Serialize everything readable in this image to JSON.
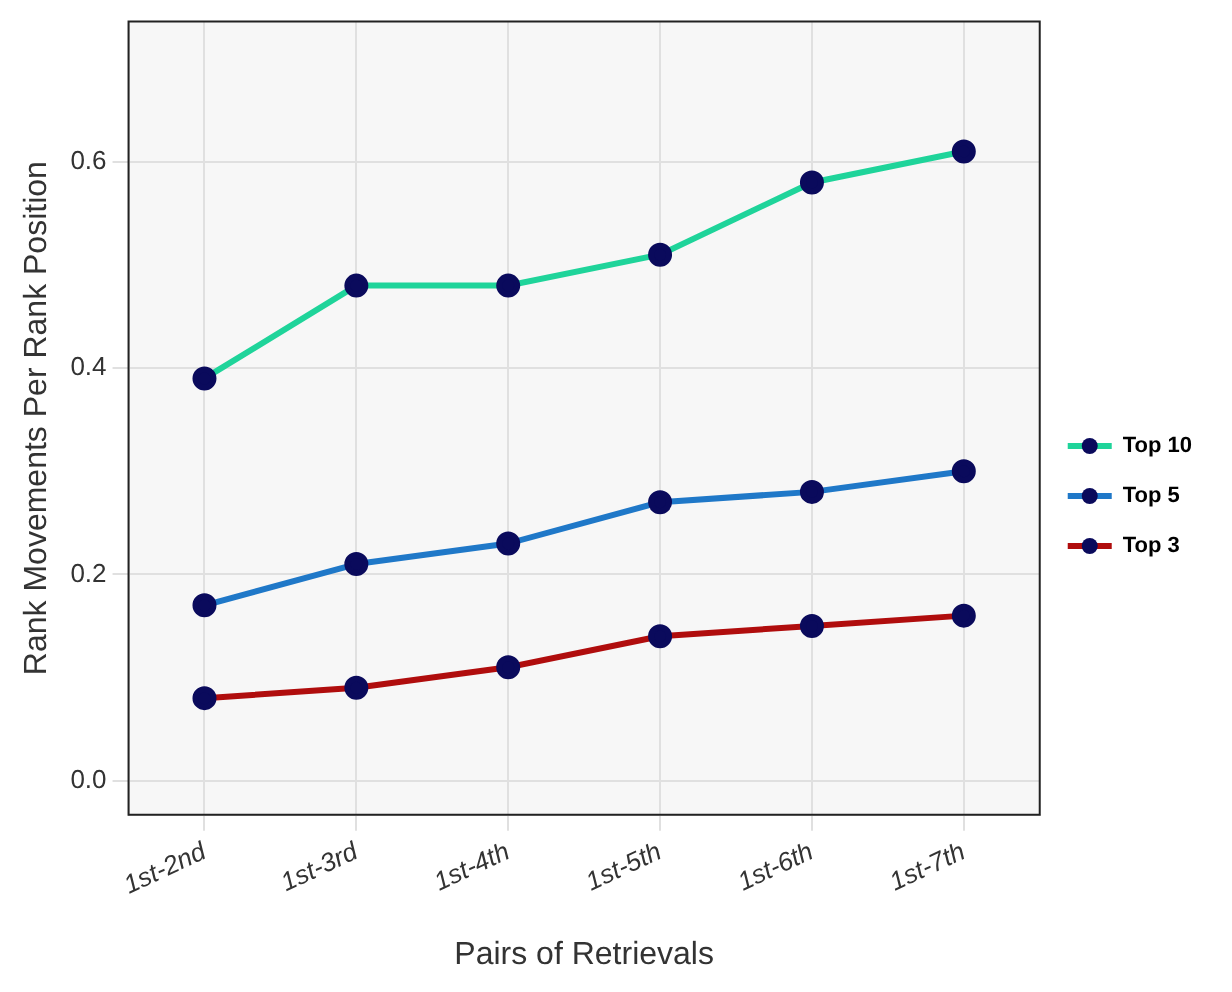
{
  "chart_data": {
    "type": "line",
    "xlabel": "Pairs of Retrievals",
    "ylabel": "Rank Movements Per Rank Position",
    "categories": [
      "1st-2nd",
      "1st-3rd",
      "1st-4th",
      "1st-5th",
      "1st-6th",
      "1st-7th"
    ],
    "series": [
      {
        "name": "Top 10",
        "color": "#1fd49a",
        "values": [
          0.39,
          0.48,
          0.48,
          0.51,
          0.58,
          0.61
        ]
      },
      {
        "name": "Top 5",
        "color": "#1f78c8",
        "values": [
          0.17,
          0.21,
          0.23,
          0.27,
          0.28,
          0.3
        ]
      },
      {
        "name": "Top 3",
        "color": "#b00d0d",
        "values": [
          0.08,
          0.09,
          0.11,
          0.14,
          0.15,
          0.16
        ]
      }
    ],
    "ylim": [
      -0.033,
      0.736
    ],
    "yticks": [
      {
        "value": 0,
        "label": "0.0"
      },
      0.2,
      0.4,
      0.6
    ],
    "grid": true,
    "legend": "right",
    "marker": "circle",
    "line_style": "solid"
  }
}
